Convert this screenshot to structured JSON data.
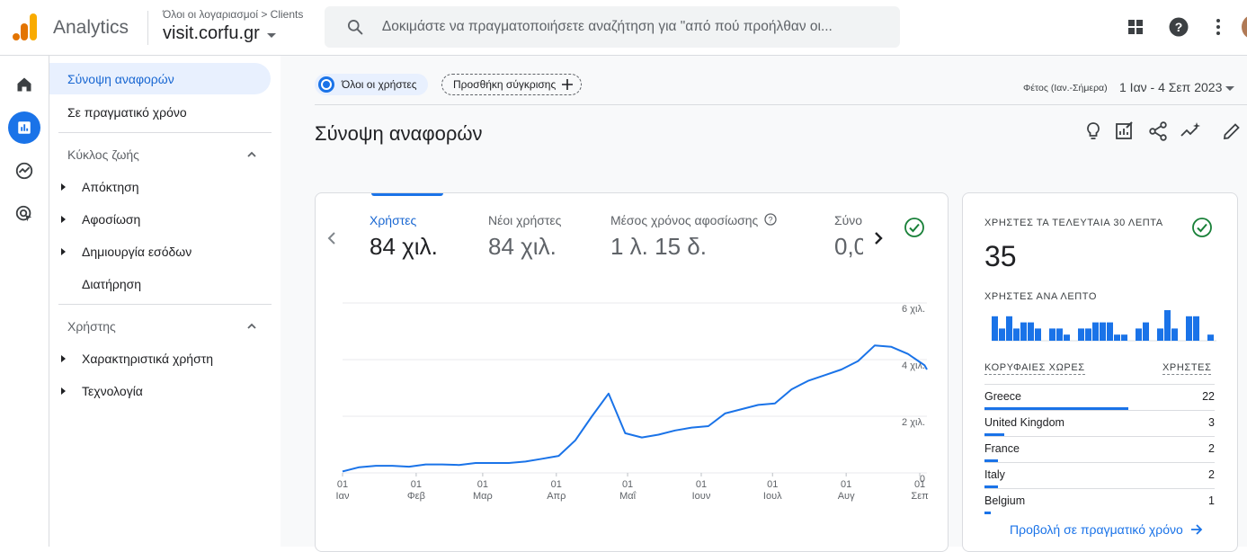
{
  "header": {
    "app_name": "Analytics",
    "breadcrumb_root": "Όλοι οι λογαριασμοί",
    "breadcrumb_child": "Clients",
    "property_name": "visit.corfu.gr",
    "search_placeholder": "Δοκιμάστε να πραγματοποιήσετε αναζήτηση για \"από πού προήλθαν οι..."
  },
  "nav": {
    "report_overview": "Σύνοψη αναφορών",
    "realtime": "Σε πραγματικό χρόνο",
    "lifecycle_section": "Κύκλος ζωής",
    "lifecycle_items": [
      "Απόκτηση",
      "Αφοσίωση",
      "Δημιουργία εσόδων",
      "Διατήρηση"
    ],
    "user_section": "Χρήστης",
    "user_items": [
      "Χαρακτηριστικά χρήστη",
      "Τεχνολογία"
    ]
  },
  "toolbar": {
    "segment_chip": "Όλοι οι χρήστες",
    "add_comparison": "Προσθήκη σύγκρισης",
    "date_label": "Φέτος (Ιαν.-Σήμερα)",
    "date_range": "1 Ιαν - 4 Σεπ 2023"
  },
  "page_title": "Σύνοψη αναφορών",
  "metrics": [
    {
      "label": "Χρήστες",
      "value": "84 χιλ."
    },
    {
      "label": "Νέοι χρήστες",
      "value": "84 χιλ."
    },
    {
      "label": "Μέσος χρόνος αφοσίωσης",
      "value": "1 λ. 15 δ."
    },
    {
      "label": "Σύνο",
      "value": "0,0"
    }
  ],
  "chart_data": {
    "type": "line",
    "series": [
      {
        "x": [
          "2023-01-01",
          "2023-01-08",
          "2023-01-15",
          "2023-01-22",
          "2023-01-29",
          "2023-02-05",
          "2023-02-12",
          "2023-02-19",
          "2023-02-26",
          "2023-03-05",
          "2023-03-12",
          "2023-03-19",
          "2023-03-26",
          "2023-04-02",
          "2023-04-09",
          "2023-04-16",
          "2023-04-23",
          "2023-04-30",
          "2023-05-07",
          "2023-05-14",
          "2023-05-21",
          "2023-05-28",
          "2023-06-04",
          "2023-06-11",
          "2023-06-18",
          "2023-06-25",
          "2023-07-02",
          "2023-07-09",
          "2023-07-16",
          "2023-07-23",
          "2023-07-30",
          "2023-08-06",
          "2023-08-13",
          "2023-08-20",
          "2023-08-27",
          "2023-09-03",
          "2023-09-04"
        ],
        "values": [
          50,
          200,
          250,
          250,
          220,
          300,
          300,
          280,
          350,
          350,
          350,
          400,
          500,
          600,
          1150,
          2000,
          2800,
          1400,
          1250,
          1350,
          1500,
          1600,
          1650,
          2100,
          2250,
          2400,
          2450,
          2950,
          3250,
          3450,
          3650,
          3950,
          4500,
          4450,
          4200,
          3800,
          3650
        ]
      }
    ],
    "x_ticks": [
      {
        "d": "01",
        "m": "Ιαν",
        "x": "2023-01-01"
      },
      {
        "d": "01",
        "m": "Φεβ",
        "x": "2023-02-01"
      },
      {
        "d": "01",
        "m": "Μαρ",
        "x": "2023-03-01"
      },
      {
        "d": "01",
        "m": "Απρ",
        "x": "2023-04-01"
      },
      {
        "d": "01",
        "m": "Μαΐ",
        "x": "2023-05-01"
      },
      {
        "d": "01",
        "m": "Ιουν",
        "x": "2023-06-01"
      },
      {
        "d": "01",
        "m": "Ιουλ",
        "x": "2023-07-01"
      },
      {
        "d": "01",
        "m": "Αυγ",
        "x": "2023-08-01"
      },
      {
        "d": "01",
        "m": "Σεπ",
        "x": "2023-09-01"
      }
    ],
    "y_ticks": [
      {
        "v": 0,
        "label": "0"
      },
      {
        "v": 2000,
        "label": "2 χιλ."
      },
      {
        "v": 4000,
        "label": "4 χιλ."
      },
      {
        "v": 6000,
        "label": "6 χιλ."
      }
    ],
    "xlim": [
      "2023-01-01",
      "2023-09-04"
    ],
    "ylim": [
      0,
      6000
    ],
    "color": "#1a73e8",
    "grid": true
  },
  "realtime": {
    "title": "ΧΡΗΣΤΕΣ ΤΑ ΤΕΛΕΥΤΑΙΑ 30 ΛΕΠΤΑ",
    "count": "35",
    "per_minute_title": "ΧΡΗΣΤΕΣ ΑΝΑ ΛΕΠΤΟ",
    "per_minute": [
      4,
      2,
      4,
      2,
      3,
      3,
      2,
      0,
      2,
      2,
      1,
      0,
      2,
      2,
      3,
      3,
      3,
      1,
      1,
      0,
      2,
      3,
      0,
      2,
      5,
      2,
      0,
      4,
      4,
      0,
      1,
      0
    ],
    "top_countries_label": "ΚΟΡΥΦΑΙΕΣ ΧΩΡΕΣ",
    "users_label": "ΧΡΗΣΤΕΣ",
    "countries": [
      {
        "name": "Greece",
        "value": "22",
        "n": 22
      },
      {
        "name": "United Kingdom",
        "value": "3",
        "n": 3
      },
      {
        "name": "France",
        "value": "2",
        "n": 2
      },
      {
        "name": "Italy",
        "value": "2",
        "n": 2
      },
      {
        "name": "Belgium",
        "value": "1",
        "n": 1
      }
    ],
    "link": "Προβολή σε πραγματικό χρόνο"
  },
  "colors": {
    "accent": "#1a73e8",
    "success": "#188038"
  }
}
